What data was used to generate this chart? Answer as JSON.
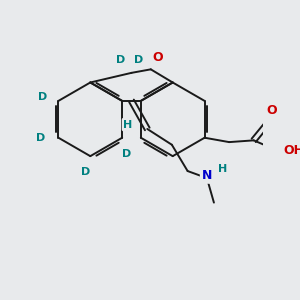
{
  "bg_color": "#e8eaec",
  "bond_color": "#1a1a1a",
  "bond_width": 1.4,
  "atom_colors": {
    "O": "#cc0000",
    "N": "#0000cc",
    "D": "#008080",
    "H": "#008080",
    "C": "#1a1a1a"
  },
  "fig_bg": "#e8eaec"
}
